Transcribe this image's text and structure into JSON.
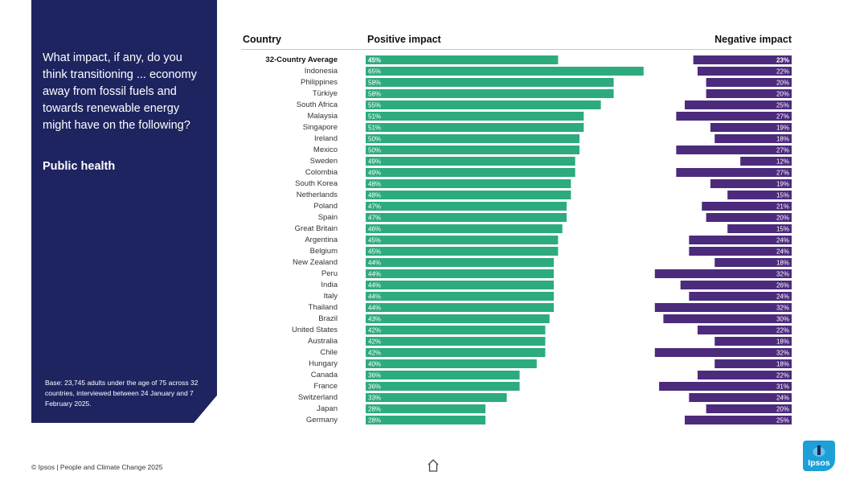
{
  "sidebar": {
    "question": "What impact, if any, do you think transitioning ... economy away from fossil fuels and towards renewable energy might have on the following?",
    "subtitle": "Public health",
    "base_note": "Base: 23,745 adults under the age of 75 across 32 countries, interviewed between 24 January and 7 February 2025."
  },
  "headers": {
    "country": "Country",
    "positive": "Positive impact",
    "negative": "Negative impact"
  },
  "colors": {
    "positive": "#2cab7d",
    "negative": "#4c2a7c",
    "sidebar": "#1e2460",
    "logo": "#1d9fd8"
  },
  "chart_data": {
    "type": "bar",
    "title": "Public health",
    "categories": [
      "32-Country Average",
      "Indonesia",
      "Philippines",
      "Türkiye",
      "South Africa",
      "Malaysia",
      "Singapore",
      "Ireland",
      "Mexico",
      "Sweden",
      "Colombia",
      "South Korea",
      "Netherlands",
      "Poland",
      "Spain",
      "Great Britain",
      "Argentina",
      "Belgium",
      "New Zealand",
      "Peru",
      "India",
      "Italy",
      "Thailand",
      "Brazil",
      "United States",
      "Australia",
      "Chile",
      "Hungary",
      "Canada",
      "France",
      "Switzerland",
      "Japan",
      "Germany"
    ],
    "series": [
      {
        "name": "Positive impact",
        "values": [
          45,
          65,
          58,
          58,
          55,
          51,
          51,
          50,
          50,
          49,
          49,
          48,
          48,
          47,
          47,
          46,
          45,
          45,
          44,
          44,
          44,
          44,
          44,
          43,
          42,
          42,
          42,
          40,
          36,
          36,
          33,
          28,
          28
        ]
      },
      {
        "name": "Negative impact",
        "values": [
          23,
          22,
          20,
          20,
          25,
          27,
          19,
          18,
          27,
          12,
          27,
          19,
          15,
          21,
          20,
          15,
          24,
          24,
          18,
          32,
          26,
          24,
          32,
          30,
          22,
          18,
          32,
          18,
          22,
          31,
          24,
          20,
          25
        ]
      }
    ],
    "xlabel": "",
    "ylabel": "",
    "xlim": [
      0,
      100
    ]
  },
  "footer": {
    "copyright": "© Ipsos | People and Climate Change 2025"
  },
  "logo": {
    "text": "Ipsos"
  }
}
